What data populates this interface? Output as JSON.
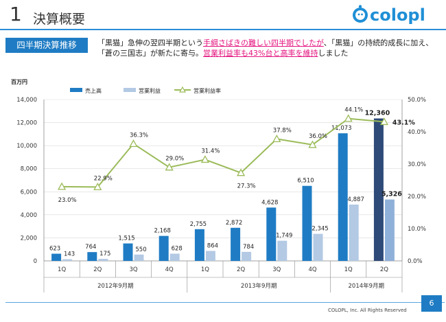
{
  "header": {
    "section_number": "1",
    "title": "決算概要",
    "logo_text": "colopl"
  },
  "section_tag": "四半期決算推移",
  "summary": {
    "p1": "「黒猫」急伸の翌四半期という",
    "h1": "手綱さばきの難しい四半期でしたが",
    "p2": "、「黒猫」の持続的成長に加え、「蒼の三国志」が新たに寄与。",
    "h2": "営業利益率も43%台と高率を維持",
    "p3": "しました"
  },
  "chart_data": {
    "type": "bar",
    "unit_label": "百万円",
    "categories": [
      "1Q",
      "2Q",
      "3Q",
      "4Q",
      "1Q",
      "2Q",
      "3Q",
      "4Q",
      "1Q",
      "2Q"
    ],
    "groups": [
      {
        "label": "2012年9月期",
        "count": 4
      },
      {
        "label": "2013年9月期",
        "count": 4
      },
      {
        "label": "2014年9月期",
        "count": 2
      }
    ],
    "series": [
      {
        "name": "売上高",
        "kind": "bar",
        "color": "#1f7cc4",
        "highlight_color": "#2e4a78",
        "values": [
          623,
          764,
          1515,
          2168,
          2755,
          2872,
          4628,
          6510,
          11073,
          12360
        ]
      },
      {
        "name": "営業利益",
        "kind": "bar",
        "color": "#b3c9e4",
        "highlight_color": "#8fb0d8",
        "values": [
          143,
          175,
          550,
          628,
          864,
          784,
          1749,
          2345,
          4887,
          5326
        ]
      },
      {
        "name": "営業利益率",
        "kind": "line",
        "color": "#9bbb59",
        "axis": "right",
        "values": [
          23.0,
          22.9,
          36.3,
          29.0,
          31.4,
          27.3,
          37.8,
          36.0,
          44.1,
          43.1
        ]
      }
    ],
    "left_axis": {
      "min": 0,
      "max": 14000,
      "ticks": [
        "0",
        "2,000",
        "4,000",
        "6,000",
        "8,000",
        "10,000",
        "12,000",
        "14,000"
      ]
    },
    "right_axis": {
      "min": 0,
      "max": 50,
      "ticks": [
        "0.0%",
        "10.0%",
        "20.0%",
        "30.0%",
        "40.0%",
        "50.0%"
      ]
    },
    "revenue_labels": [
      "623",
      "764",
      "1,515",
      "2,168",
      "2,755",
      "2,872",
      "4,628",
      "6,510",
      "11,073",
      "12,360"
    ],
    "profit_labels": [
      "143",
      "175",
      "550",
      "628",
      "864",
      "784",
      "1,749",
      "2,345",
      "4,887",
      "5,326"
    ],
    "margin_labels": [
      "23.0%",
      "22.9%",
      "36.3%",
      "29.0%",
      "31.4%",
      "27.3%",
      "37.8%",
      "36.0%",
      "44.1%",
      "43.1%"
    ],
    "highlight_index": 9
  },
  "footer": {
    "copyright": "COLOPL, Inc. All Rights Reserved",
    "page_number": "6"
  }
}
